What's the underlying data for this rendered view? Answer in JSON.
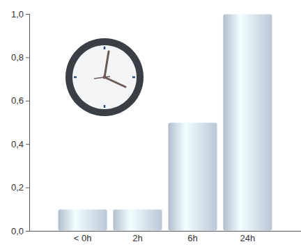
{
  "chart_data": {
    "type": "bar",
    "categories": [
      "< 0h",
      "2h",
      "6h",
      "24h"
    ],
    "values": [
      0.1,
      0.1,
      0.5,
      1.0
    ],
    "color": "#c9d5e6",
    "ylim": [
      0,
      1
    ],
    "yticks": [
      {
        "value": 0,
        "label": "0,0"
      },
      {
        "value": 0.2,
        "label": "0,2"
      },
      {
        "value": 0.4,
        "label": "0,4"
      },
      {
        "value": 0.6,
        "label": "0,6"
      },
      {
        "value": 0.8,
        "label": "0,8"
      },
      {
        "value": 1,
        "label": "1,0"
      }
    ],
    "grid": false
  }
}
